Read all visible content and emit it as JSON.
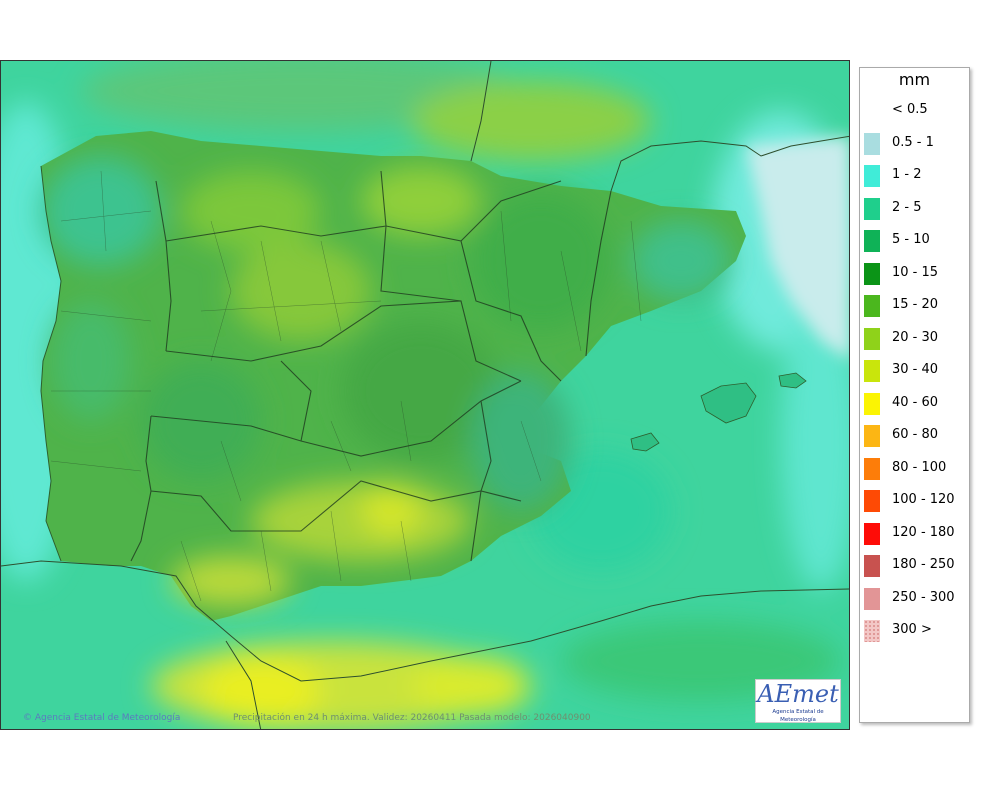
{
  "map": {
    "credit": "Agencia Estatal de Meteorología",
    "footer": "Precipitación en 24 h máxima. Validez: 20260411 Pasada modelo: 2026040900",
    "logo_text": "AEmet",
    "logo_subtext": "Agencia Estatal de Meteorología",
    "icons": {
      "copyright": "copyright-icon"
    }
  },
  "legend": {
    "unit": "mm",
    "items": [
      {
        "label": "< 0.5",
        "color": "#ffffff"
      },
      {
        "label": "0.5 - 1",
        "color": "#a9dde0"
      },
      {
        "label": "1 - 2",
        "color": "#40ecd8"
      },
      {
        "label": "2 - 5",
        "color": "#1fcf8c"
      },
      {
        "label": "5 - 10",
        "color": "#0fb257"
      },
      {
        "label": "10 - 15",
        "color": "#0b9417"
      },
      {
        "label": "15 - 20",
        "color": "#4bb71e"
      },
      {
        "label": "20 - 30",
        "color": "#8fd21a"
      },
      {
        "label": "30 - 40",
        "color": "#c9e50c"
      },
      {
        "label": "40 - 60",
        "color": "#fbf403"
      },
      {
        "label": "60 - 80",
        "color": "#fcb614"
      },
      {
        "label": "80 - 100",
        "color": "#fd7d09"
      },
      {
        "label": "100 - 120",
        "color": "#fe4a05"
      },
      {
        "label": "120 - 180",
        "color": "#fe0c07"
      },
      {
        "label": "180 - 250",
        "color": "#c8524f"
      },
      {
        "label": "250 - 300",
        "color": "#e29596"
      },
      {
        "label": "300 >",
        "color": "#f3c7c6"
      }
    ]
  }
}
